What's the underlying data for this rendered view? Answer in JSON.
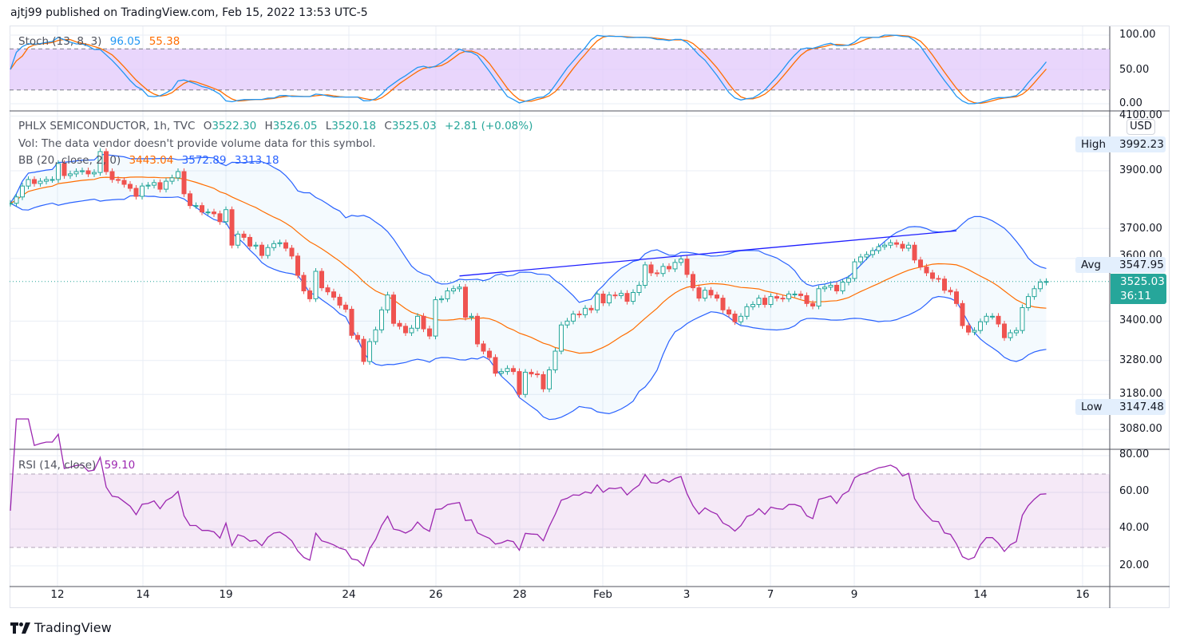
{
  "publish_line": "ajtj99 published on TradingView.com, Feb 15, 2022 13:53 UTC-5",
  "stoch": {
    "label": "Stoch (13, 8, 3)",
    "k_value": "96.05",
    "d_value": "55.38",
    "k_color": "#2196f3",
    "d_color": "#ff6d00",
    "ticks": [
      "100.00",
      "50.00",
      "0.00"
    ],
    "upper_band": 80,
    "lower_band": 20,
    "band_color": "#e1c8fb"
  },
  "main": {
    "symbol": "PHLX SEMICONDUCTOR, 1h, TVC",
    "ohlc": {
      "o_label": "O",
      "o": "3522.30",
      "h_label": "H",
      "h": "3526.05",
      "l_label": "L",
      "l": "3520.18",
      "c_label": "C",
      "c": "3525.03",
      "change": "+2.81 (+0.08%)"
    },
    "vol_note": "Vol: The data vendor doesn't provide volume data for this symbol.",
    "bb": {
      "label": "BB (20, close, 2, 0)",
      "basis": "3443.04",
      "upper": "3572.89",
      "lower": "3313.18",
      "basis_color": "#ff6d00",
      "band_color": "#2962ff"
    },
    "price_ticks": [
      "4100.00",
      "3900.00",
      "3700.00",
      "3600.00",
      "3400.00",
      "3280.00",
      "3180.00",
      "3080.00"
    ],
    "currency": "USD",
    "high": {
      "label": "High",
      "value": "3992.23"
    },
    "low": {
      "label": "Low",
      "value": "3147.48"
    },
    "avg": {
      "label": "Avg",
      "value": "3547.95"
    },
    "last_price": {
      "value": "3525.03",
      "countdown": "36:11",
      "color": "#26a69a"
    },
    "up_color": "#26a69a",
    "down_color": "#ef5350",
    "trendline": {
      "from": {
        "bar": 75,
        "price": 3543
      },
      "to": {
        "bar": 158,
        "price": 3692
      },
      "color": "#1e1eff"
    }
  },
  "rsi": {
    "label": "RSI (14, close)",
    "value": "59.10",
    "color": "#9c27b0",
    "ticks": [
      "80.00",
      "60.00",
      "40.00",
      "20.00"
    ],
    "upper_band": 70,
    "lower_band": 30
  },
  "x_axis": [
    "12",
    "14",
    "19",
    "24",
    "26",
    "28",
    "Feb",
    "3",
    "7",
    "9",
    "14",
    "16"
  ],
  "brand": "TradingView",
  "chart_data": {
    "type": "candlestick",
    "scale": "log",
    "ylim": [
      3050,
      4130
    ],
    "closes": [
      3786,
      3808,
      3846,
      3869,
      3855,
      3863,
      3869,
      3869,
      3926,
      3883,
      3889,
      3897,
      3900,
      3889,
      3894,
      3969,
      3897,
      3869,
      3866,
      3852,
      3838,
      3810,
      3846,
      3849,
      3858,
      3835,
      3863,
      3875,
      3897,
      3819,
      3778,
      3778,
      3756,
      3756,
      3750,
      3723,
      3764,
      3644,
      3681,
      3670,
      3641,
      3644,
      3610,
      3636,
      3649,
      3652,
      3634,
      3608,
      3545,
      3495,
      3470,
      3558,
      3505,
      3492,
      3475,
      3450,
      3437,
      3356,
      3344,
      3277,
      3337,
      3373,
      3435,
      3482,
      3393,
      3384,
      3364,
      3378,
      3415,
      3376,
      3354,
      3467,
      3470,
      3495,
      3502,
      3507,
      3412,
      3415,
      3330,
      3308,
      3289,
      3242,
      3247,
      3256,
      3247,
      3180,
      3245,
      3240,
      3238,
      3196,
      3252,
      3308,
      3388,
      3400,
      3422,
      3420,
      3440,
      3435,
      3485,
      3457,
      3482,
      3480,
      3487,
      3462,
      3490,
      3513,
      3579,
      3553,
      3551,
      3574,
      3566,
      3587,
      3598,
      3548,
      3505,
      3472,
      3497,
      3482,
      3472,
      3435,
      3422,
      3398,
      3415,
      3445,
      3452,
      3472,
      3452,
      3477,
      3472,
      3470,
      3485,
      3485,
      3480,
      3455,
      3447,
      3502,
      3507,
      3513,
      3495,
      3523,
      3535,
      3589,
      3605,
      3613,
      3626,
      3639,
      3644,
      3652,
      3647,
      3634,
      3644,
      3595,
      3572,
      3553,
      3535,
      3533,
      3497,
      3492,
      3455,
      3386,
      3366,
      3371,
      3398,
      3415,
      3415,
      3391,
      3349,
      3364,
      3371,
      3442,
      3477,
      3502,
      3523,
      3525.03
    ]
  }
}
